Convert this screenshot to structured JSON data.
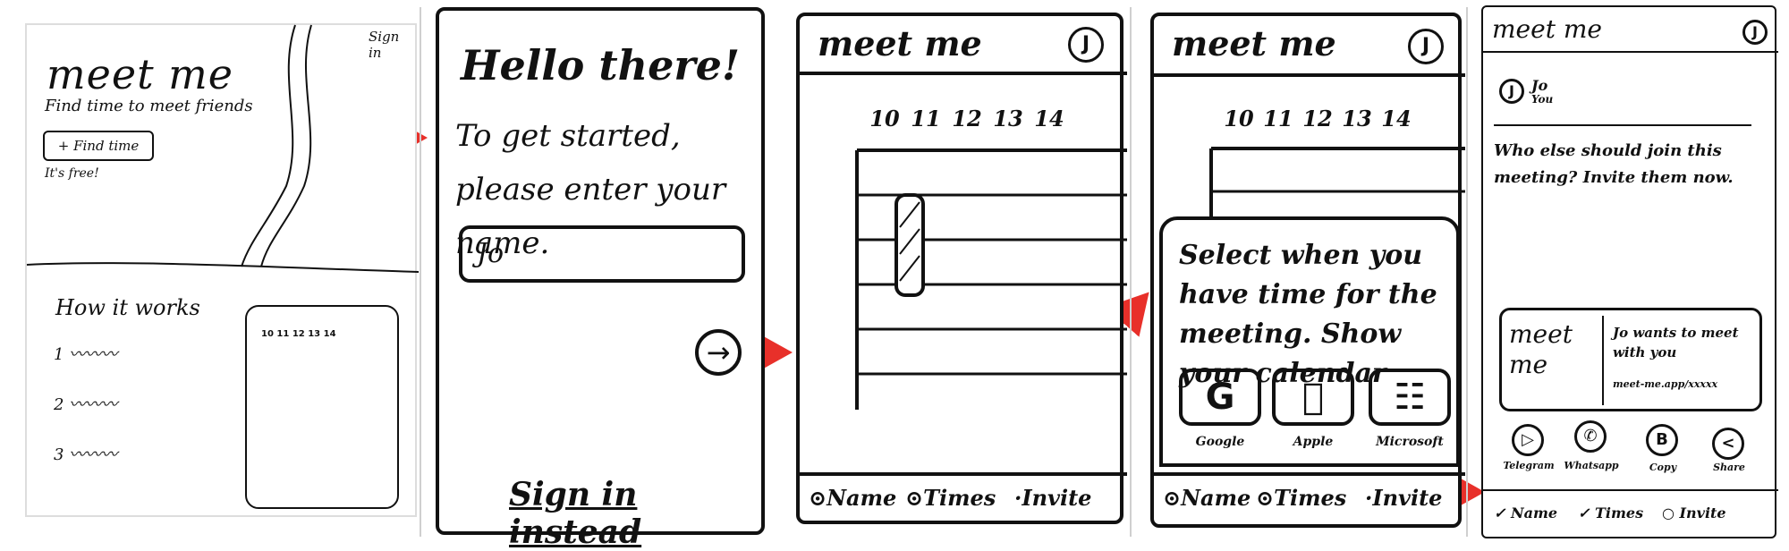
{
  "panel1": {
    "title": "meet me",
    "subtitle": "Find time to meet friends",
    "cta_label": "+ Find time",
    "free_note": "It's free!",
    "signin_link": "Sign in",
    "how_heading": "How it works",
    "steps": [
      "1",
      "2",
      "3"
    ],
    "preview_days": [
      "10",
      "11",
      "12",
      "13",
      "14"
    ]
  },
  "panel2": {
    "heading": "Hello there!",
    "instruction": "To get started, please enter your name.",
    "name_value": "Jo",
    "next_icon": "arrow-right-icon",
    "signin_link": "Sign in instead"
  },
  "panel3": {
    "title": "meet me",
    "avatar": "J",
    "days": [
      "10",
      "11",
      "12",
      "13",
      "14"
    ],
    "footer": [
      "Name",
      "Times",
      "Invite"
    ]
  },
  "panel4": {
    "title": "meet me",
    "avatar": "J",
    "days": [
      "10",
      "11",
      "12",
      "13",
      "14"
    ],
    "sheet_text": "Select when you have time for the meeting. Show your calendar",
    "providers": [
      {
        "icon": "G",
        "label": "Google"
      },
      {
        "icon": "",
        "label": "Apple"
      },
      {
        "icon": "☷",
        "label": "Microsoft"
      }
    ],
    "footer": [
      "Name",
      "Times",
      "Invite"
    ]
  },
  "panel5": {
    "title": "meet me",
    "avatar": "J",
    "participant_name": "Jo",
    "participant_role": "You",
    "prompt": "Who else should join this meeting? Invite them now.",
    "card_logo": "meet me",
    "card_text": "Jo wants to meet with you",
    "card_url": "meet-me.app/xxxxx",
    "share_targets": [
      {
        "icon": "▷",
        "label": "Telegram"
      },
      {
        "icon": "✆",
        "label": "Whatsapp"
      },
      {
        "icon": "B",
        "label": "Copy"
      },
      {
        "icon": "<",
        "label": "Share"
      }
    ],
    "footer": [
      "✓ Name",
      "✓ Times",
      "○ Invite"
    ]
  },
  "colors": {
    "ink": "#111111",
    "arrow": "#e8302a"
  }
}
